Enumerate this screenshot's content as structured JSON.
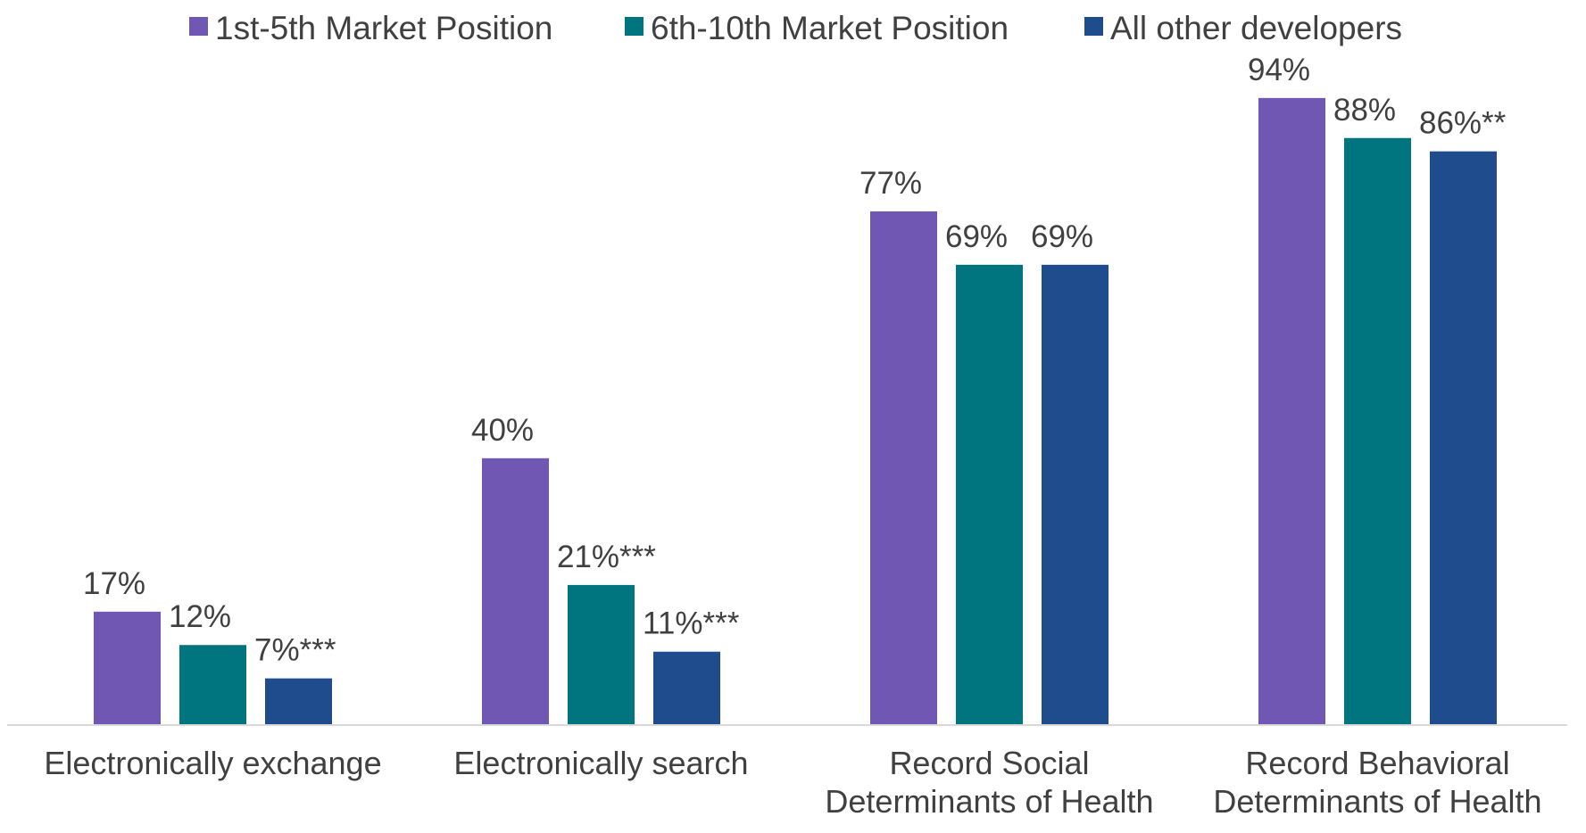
{
  "chart_data": {
    "type": "bar",
    "title": "",
    "xlabel": "",
    "ylabel": "",
    "ylim": [
      0,
      100
    ],
    "grid": false,
    "legend_position": "top",
    "categories": [
      [
        "Electronically exchange"
      ],
      [
        "Electronically search"
      ],
      [
        "Record Social",
        "Determinants of Health"
      ],
      [
        "Record Behavioral",
        "Determinants of Health"
      ]
    ],
    "series": [
      {
        "name": "1st-5th Market Position",
        "color": "#7157b4",
        "values": [
          17,
          40,
          77,
          94
        ],
        "labels": [
          "17%",
          "40%",
          "77%",
          "94%"
        ]
      },
      {
        "name": "6th-10th Market Position",
        "color": "#00747f",
        "values": [
          12,
          21,
          69,
          88
        ],
        "labels": [
          "12%",
          "21%***",
          "69%",
          "88%"
        ]
      },
      {
        "name": "All other developers",
        "color": "#1e4c8c",
        "values": [
          7,
          11,
          69,
          86
        ],
        "labels": [
          "7%***",
          "11%***",
          "69%",
          "86%**"
        ]
      }
    ]
  }
}
